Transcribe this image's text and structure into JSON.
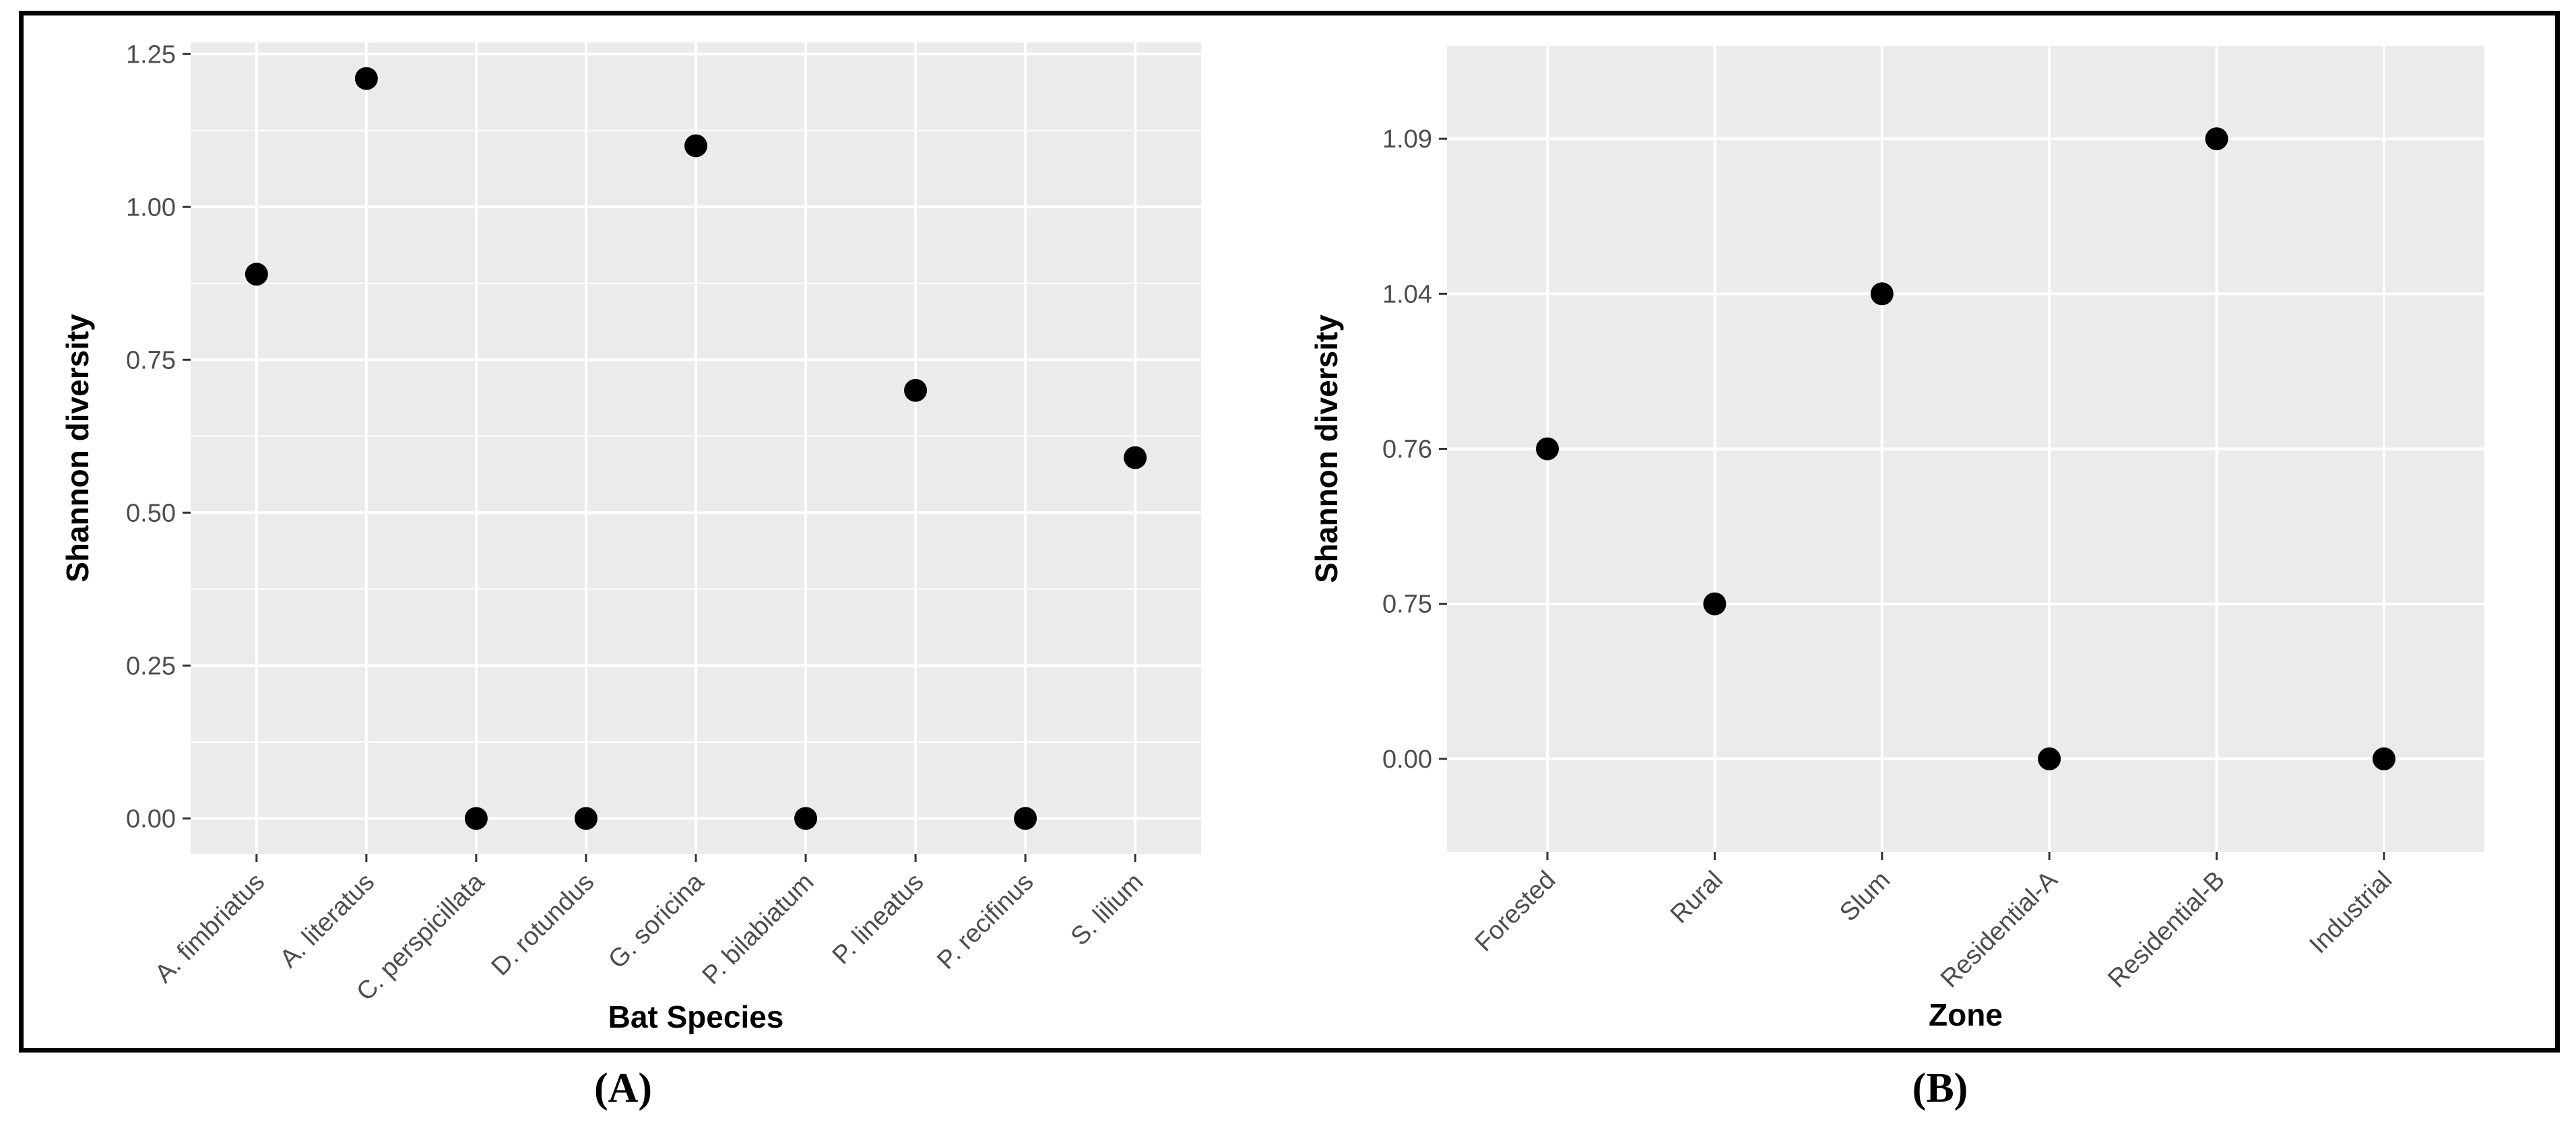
{
  "figure": {
    "background": "#ffffff",
    "border_color": "#000000",
    "panel_background": "#ebebeb",
    "gridline_color": "#ffffff",
    "point_color": "#000000",
    "tick_mark_color": "#333333",
    "tick_label_color": "#4d4d4d",
    "axis_title_color": "#000000"
  },
  "captions": {
    "a": "(A)",
    "b": "(B)"
  },
  "chart_data": [
    {
      "id": "plot-a",
      "type": "scatter",
      "title": "",
      "xlabel": "Bat Species",
      "ylabel": "Shannon diversity",
      "categories": [
        "A. fimbriatus",
        "A. literatus",
        "C. perspicillata",
        "D. rotundus",
        "G. soricina",
        "P. bilabiatum",
        "P. lineatus",
        "P. recifinus",
        "S. lilium"
      ],
      "values": [
        0.89,
        1.21,
        0.0,
        0.0,
        1.1,
        0.0,
        0.7,
        0.0,
        0.59
      ],
      "y_axis": {
        "type": "continuous",
        "ticks": [
          "0.00",
          "0.25",
          "0.50",
          "0.75",
          "1.00",
          "1.25"
        ],
        "range_min": -0.058,
        "range_max": 1.269,
        "minor_gridlines": true
      },
      "x_axis": {
        "label_rotation": -45
      },
      "legend": "none",
      "grid": "on"
    },
    {
      "id": "plot-b",
      "type": "scatter",
      "title": "",
      "xlabel": "Zone",
      "ylabel": "Shannon diversity",
      "categories": [
        "Forested",
        "Rural",
        "Slum",
        "Residential-A",
        "Residential-B",
        "Industrial"
      ],
      "values": [
        "0.76",
        "0.75",
        "1.04",
        "0.00",
        "1.09",
        "0.00"
      ],
      "y_axis": {
        "type": "discrete",
        "levels": [
          "0.00",
          "0.75",
          "0.76",
          "1.04",
          "1.09"
        ],
        "minor_gridlines": false
      },
      "x_axis": {
        "label_rotation": -45
      },
      "legend": "none",
      "grid": "on"
    }
  ]
}
